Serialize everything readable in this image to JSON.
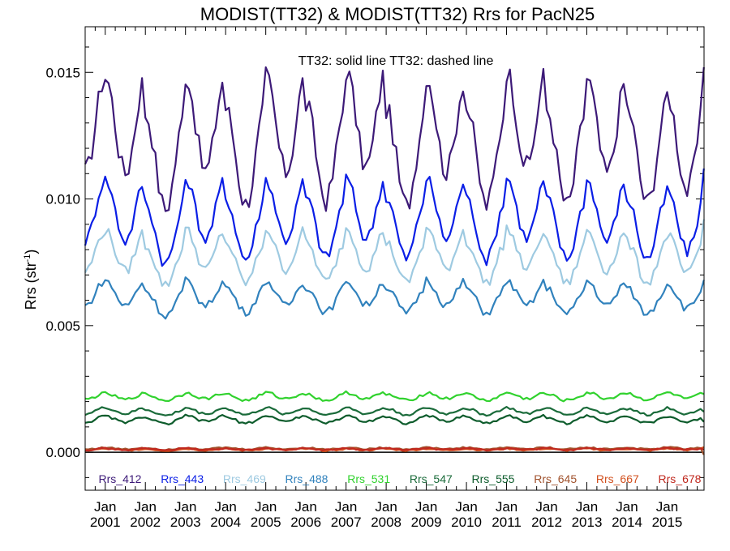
{
  "chart_data": {
    "type": "line",
    "title": "MODIST(TT32) & MODIST(TT32)  Rrs for PacN25",
    "ylabel": "Rrs (str",
    "ylabel_sup": "-1",
    "ylabel_close": ")",
    "annotation": "TT32: solid line   TT32: dashed line",
    "ylim": [
      -0.0015,
      0.0168
    ],
    "xlim": [
      2000.5,
      2015.92
    ],
    "grid": false,
    "y_ticks": [
      0.0,
      0.005,
      0.01,
      0.015
    ],
    "y_tick_labels": [
      "0.000",
      "0.005",
      "0.010",
      "0.015"
    ],
    "x_ticks": [
      {
        "pos": 2001.0,
        "month": "Jan",
        "year": "2001"
      },
      {
        "pos": 2002.0,
        "month": "Jan",
        "year": "2002"
      },
      {
        "pos": 2003.0,
        "month": "Jan",
        "year": "2003"
      },
      {
        "pos": 2004.0,
        "month": "Jan",
        "year": "2004"
      },
      {
        "pos": 2005.0,
        "month": "Jan",
        "year": "2005"
      },
      {
        "pos": 2006.0,
        "month": "Jan",
        "year": "2006"
      },
      {
        "pos": 2007.0,
        "month": "Jan",
        "year": "2007"
      },
      {
        "pos": 2008.0,
        "month": "Jan",
        "year": "2008"
      },
      {
        "pos": 2009.0,
        "month": "Jan",
        "year": "2009"
      },
      {
        "pos": 2010.0,
        "month": "Jan",
        "year": "2010"
      },
      {
        "pos": 2011.0,
        "month": "Jan",
        "year": "2011"
      },
      {
        "pos": 2012.0,
        "month": "Jan",
        "year": "2012"
      },
      {
        "pos": 2013.0,
        "month": "Jan",
        "year": "2013"
      },
      {
        "pos": 2014.0,
        "month": "Jan",
        "year": "2014"
      },
      {
        "pos": 2015.0,
        "month": "Jan",
        "year": "2015"
      }
    ],
    "legend_placement": "bottom",
    "reference_line": {
      "y": 0.0,
      "color": "#000000"
    },
    "x_start": 2000.5,
    "x_end": 2015.92,
    "series": [
      {
        "name": "Rrs_412",
        "color": "#3d1a78",
        "mean": 0.0124,
        "amp": 0.0019,
        "noise": 0.00045,
        "values_at_ticks": [
          0.0139,
          0.0098,
          0.0141,
          0.0104,
          0.014,
          0.0108,
          0.0146,
          0.0102,
          0.0141,
          0.0103,
          0.0146,
          0.0102,
          0.0138,
          0.0105,
          0.0119
        ],
        "end_value": 0.0152
      },
      {
        "name": "Rrs_443",
        "color": "#0a1ee6",
        "mean": 0.0092,
        "amp": 0.0012,
        "noise": 0.00025,
        "values_at_ticks": [
          0.0102,
          0.0076,
          0.0104,
          0.0081,
          0.0103,
          0.0083,
          0.0104,
          0.0082,
          0.0104,
          0.0081,
          0.0105,
          0.0081,
          0.0102,
          0.0081,
          0.009
        ],
        "end_value": 0.0112
      },
      {
        "name": "Rrs_469",
        "color": "#9ecae1",
        "mean": 0.0077,
        "amp": 0.0008,
        "noise": 0.0002,
        "values_at_ticks": [
          0.0084,
          0.0068,
          0.0086,
          0.0071,
          0.0086,
          0.0072,
          0.0087,
          0.0071,
          0.0087,
          0.0071,
          0.0087,
          0.007,
          0.0085,
          0.0071,
          0.008
        ],
        "end_value": 0.0092
      },
      {
        "name": "Rrs_488",
        "color": "#3182bd",
        "mean": 0.0061,
        "amp": 0.0005,
        "noise": 0.00015,
        "values_at_ticks": [
          0.0066,
          0.0055,
          0.0066,
          0.0059,
          0.0066,
          0.0059,
          0.0067,
          0.0058,
          0.0067,
          0.0058,
          0.0066,
          0.0057,
          0.0066,
          0.0057,
          0.0063
        ],
        "end_value": 0.0068
      },
      {
        "name": "Rrs_531",
        "color": "#31d22e",
        "mean": 0.0022,
        "amp": 0.00012,
        "noise": 6e-05,
        "values_at_ticks": [
          0.0022,
          0.0021,
          0.0023,
          0.0021,
          0.0023,
          0.0021,
          0.0023,
          0.0021,
          0.0023,
          0.0021,
          0.0023,
          0.0021,
          0.0023,
          0.0022,
          0.0023
        ],
        "end_value": 0.0023
      },
      {
        "name": "Rrs_547",
        "color": "#1a6b3a",
        "mean": 0.0016,
        "amp": 0.00012,
        "noise": 5e-05,
        "values_at_ticks": [
          0.0017,
          0.0015,
          0.0017,
          0.0016,
          0.0017,
          0.0016,
          0.0017,
          0.0016,
          0.0017,
          0.0016,
          0.0017,
          0.0016,
          0.0017,
          0.0016,
          0.0017
        ],
        "end_value": 0.0016
      },
      {
        "name": "Rrs_555",
        "color": "#0d5c2c",
        "mean": 0.0013,
        "amp": 0.00012,
        "noise": 5e-05,
        "values_at_ticks": [
          0.0013,
          0.0011,
          0.0014,
          0.0012,
          0.0014,
          0.0012,
          0.0014,
          0.0012,
          0.0014,
          0.0012,
          0.0014,
          0.0012,
          0.0014,
          0.0012,
          0.0013
        ],
        "end_value": 0.0012
      },
      {
        "name": "Rrs_645",
        "color": "#a0522d",
        "mean": 0.00015,
        "amp": 3e-05,
        "noise": 3e-05,
        "values_at_ticks": [
          0.00015,
          0.00012,
          0.00016,
          0.00014,
          0.00016,
          0.00014,
          0.00017,
          0.00015,
          0.00017,
          0.00015,
          0.00018,
          0.00016,
          0.00017,
          0.00015,
          0.0002
        ],
        "end_value": -0.0001
      },
      {
        "name": "Rrs_667",
        "color": "#d2501e",
        "mean": 0.0001,
        "amp": 3e-05,
        "noise": 3e-05,
        "values_at_ticks": [
          0.0001,
          8e-05,
          0.00012,
          9e-05,
          0.00012,
          9e-05,
          0.00013,
          0.0001,
          0.00012,
          0.0001,
          0.00013,
          0.0001,
          0.00012,
          0.0001,
          0.00015
        ],
        "end_value": 0.0002
      },
      {
        "name": "Rrs_678",
        "color": "#c0281e",
        "mean": 0.00012,
        "amp": 3e-05,
        "noise": 3e-05,
        "values_at_ticks": [
          0.00012,
          0.0001,
          0.00013,
          0.00011,
          0.00013,
          0.00011,
          0.00014,
          0.00012,
          0.00014,
          0.00012,
          0.00015,
          0.00012,
          0.00014,
          0.00012,
          0.00016
        ],
        "end_value": 0.0001
      }
    ]
  }
}
